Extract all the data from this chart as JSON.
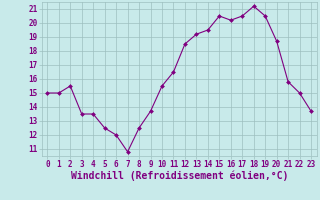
{
  "x": [
    0,
    1,
    2,
    3,
    4,
    5,
    6,
    7,
    8,
    9,
    10,
    11,
    12,
    13,
    14,
    15,
    16,
    17,
    18,
    19,
    20,
    21,
    22,
    23
  ],
  "y": [
    15.0,
    15.0,
    15.5,
    13.5,
    13.5,
    12.5,
    12.0,
    10.8,
    12.5,
    13.7,
    15.5,
    16.5,
    18.5,
    19.2,
    19.5,
    20.5,
    20.2,
    20.5,
    21.2,
    20.5,
    18.7,
    15.8,
    15.0,
    13.7
  ],
  "line_color": "#800080",
  "marker_color": "#800080",
  "bg_color": "#c8eaea",
  "grid_color": "#9dbfbf",
  "xlabel": "Windchill (Refroidissement éolien,°C)",
  "ylim": [
    10.5,
    21.5
  ],
  "xlim": [
    -0.5,
    23.5
  ],
  "yticks": [
    11,
    12,
    13,
    14,
    15,
    16,
    17,
    18,
    19,
    20,
    21
  ],
  "xticks": [
    0,
    1,
    2,
    3,
    4,
    5,
    6,
    7,
    8,
    9,
    10,
    11,
    12,
    13,
    14,
    15,
    16,
    17,
    18,
    19,
    20,
    21,
    22,
    23
  ],
  "tick_label_color": "#800080",
  "xlabel_color": "#800080",
  "tick_fontsize": 5.5,
  "xlabel_fontsize": 7.0
}
